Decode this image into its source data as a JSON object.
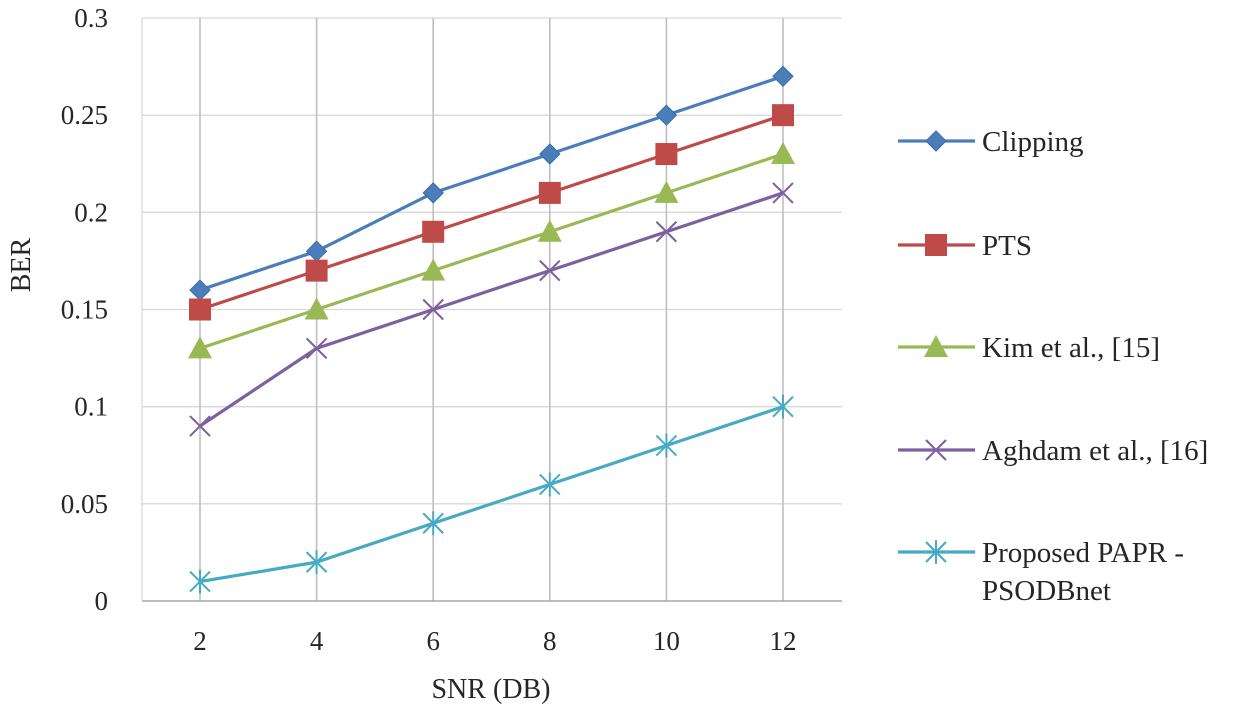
{
  "chart_data": {
    "type": "line",
    "title": "",
    "xlabel": "SNR (DB)",
    "ylabel": "BER",
    "categories": [
      "2",
      "4",
      "6",
      "8",
      "10",
      "12"
    ],
    "ylim": [
      0,
      0.3
    ],
    "yticks": [
      "0",
      "0.05",
      "0.1",
      "0.15",
      "0.2",
      "0.25",
      "0.3"
    ],
    "grid": "horizontal and vertical",
    "legend_position": "right",
    "series": [
      {
        "name": "Clipping",
        "color": "#4a7ebb",
        "marker": "diamond",
        "values": [
          0.16,
          0.18,
          0.21,
          0.23,
          0.25,
          0.27
        ]
      },
      {
        "name": "PTS",
        "color": "#be4b48",
        "marker": "square",
        "values": [
          0.15,
          0.17,
          0.19,
          0.21,
          0.23,
          0.25
        ]
      },
      {
        "name": "Kim et al., [15]",
        "color": "#98b954",
        "marker": "triangle",
        "values": [
          0.13,
          0.15,
          0.17,
          0.19,
          0.21,
          0.23
        ]
      },
      {
        "name": "Aghdam et al., [16]",
        "color": "#7d60a0",
        "marker": "x",
        "values": [
          0.09,
          0.13,
          0.15,
          0.17,
          0.19,
          0.21
        ]
      },
      {
        "name": "Proposed PAPR - PSODBnet",
        "name_lines": [
          "Proposed PAPR -",
          "PSODBnet"
        ],
        "color": "#46aac5",
        "marker": "asterisk",
        "values": [
          0.01,
          0.02,
          0.04,
          0.06,
          0.08,
          0.1
        ]
      }
    ]
  }
}
